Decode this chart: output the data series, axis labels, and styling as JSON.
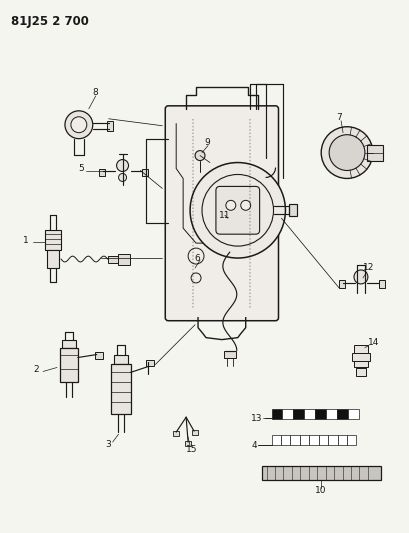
{
  "title": "81J25 2 700",
  "bg_color": "#f5f5f0",
  "fg_color": "#1a1a1a",
  "title_fontsize": 8.5,
  "label_fontsize": 6.5,
  "lw": 0.85
}
